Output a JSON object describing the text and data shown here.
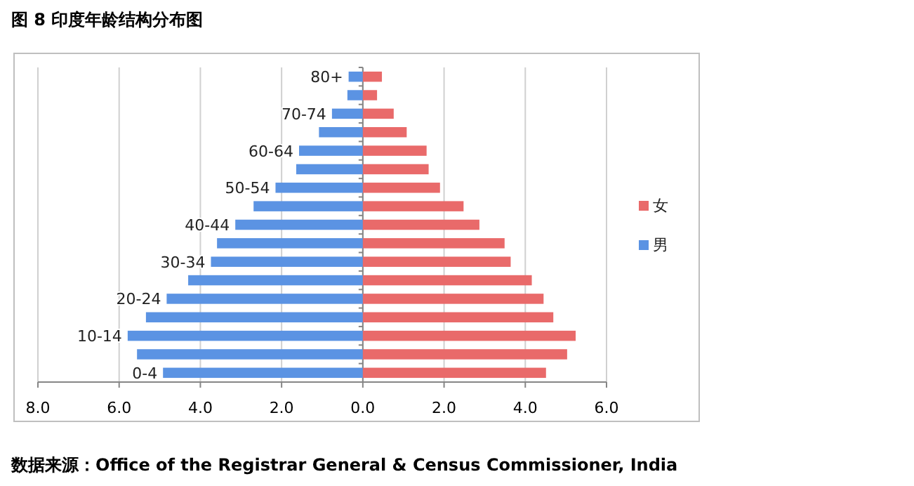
{
  "chart_data": {
    "type": "bar",
    "orientation": "horizontal",
    "title": "图 8 印度年龄结构分布图",
    "categories": [
      "80+",
      null,
      "70-74",
      null,
      "60-64",
      null,
      "50-54",
      null,
      "40-44",
      null,
      "30-34",
      null,
      "20-24",
      null,
      "10-14",
      null,
      "0-4"
    ],
    "series": [
      {
        "name": "男",
        "color": "#5b93e3",
        "values": [
          -0.35,
          -0.38,
          -0.76,
          -1.08,
          -1.57,
          -1.64,
          -2.15,
          -2.69,
          -3.14,
          -3.59,
          -3.74,
          -4.3,
          -4.83,
          -5.34,
          -5.79,
          -5.56,
          -4.92
        ]
      },
      {
        "name": "女",
        "color": "#e96a6a",
        "values": [
          0.47,
          0.35,
          0.76,
          1.08,
          1.57,
          1.62,
          1.9,
          2.48,
          2.87,
          3.49,
          3.64,
          4.16,
          4.45,
          4.69,
          5.24,
          5.03,
          4.51
        ]
      }
    ],
    "xlim": [
      -8,
      6
    ],
    "xticks": [
      {
        "value": -8,
        "label": "8.0"
      },
      {
        "value": -6,
        "label": "6.0"
      },
      {
        "value": -4,
        "label": "4.0"
      },
      {
        "value": -2,
        "label": "2.0"
      },
      {
        "value": 0,
        "label": "0.0"
      },
      {
        "value": 2,
        "label": "2.0"
      },
      {
        "value": 4,
        "label": "4.0"
      },
      {
        "value": 6,
        "label": "6.0"
      }
    ],
    "grid": "x",
    "legend": "right",
    "stacked": true,
    "annotations": [
      "数据来源：Office of the Registrar General & Census Commissioner, India"
    ]
  }
}
